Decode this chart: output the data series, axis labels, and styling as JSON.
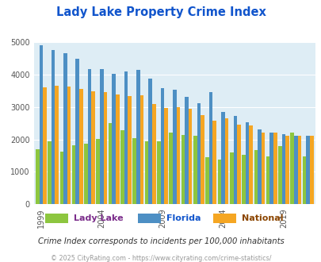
{
  "title": "Lady Lake Property Crime Index",
  "years": [
    1999,
    2000,
    2001,
    2002,
    2003,
    2004,
    2005,
    2006,
    2007,
    2008,
    2009,
    2010,
    2011,
    2012,
    2013,
    2014,
    2015,
    2016,
    2017,
    2018,
    2019,
    2020,
    2021
  ],
  "lady_lake": [
    1700,
    1950,
    1620,
    1830,
    1870,
    2010,
    2510,
    2290,
    2050,
    1940,
    1930,
    2200,
    2140,
    2100,
    1450,
    1380,
    1600,
    1530,
    1680,
    1470,
    1800,
    2200,
    1470
  ],
  "florida": [
    4890,
    4760,
    4650,
    4490,
    4170,
    4170,
    4020,
    4100,
    4130,
    3860,
    3570,
    3520,
    3300,
    3110,
    3450,
    2840,
    2720,
    2520,
    2310,
    2210,
    2150,
    2100,
    2100
  ],
  "national": [
    3600,
    3660,
    3620,
    3560,
    3490,
    3460,
    3370,
    3340,
    3350,
    3080,
    2970,
    2980,
    2940,
    2750,
    2580,
    2650,
    2450,
    2420,
    2210,
    2210,
    2100,
    2100,
    2100
  ],
  "lady_lake_color": "#8dc63f",
  "florida_color": "#4d8fc4",
  "national_color": "#f5a623",
  "plot_bg": "#deedf5",
  "title_color": "#1155cc",
  "legend_label_colors": [
    "#7b2d8b",
    "#1155cc",
    "#8b4500"
  ],
  "legend_labels": [
    "Lady Lake",
    "Florida",
    "National"
  ],
  "subtitle": "Crime Index corresponds to incidents per 100,000 inhabitants",
  "copyright": "© 2025 CityRating.com - https://www.cityrating.com/crime-statistics/",
  "ylim": [
    0,
    5000
  ],
  "yticks": [
    0,
    1000,
    2000,
    3000,
    4000,
    5000
  ],
  "labeled_years": [
    1999,
    2004,
    2009,
    2014,
    2019
  ]
}
